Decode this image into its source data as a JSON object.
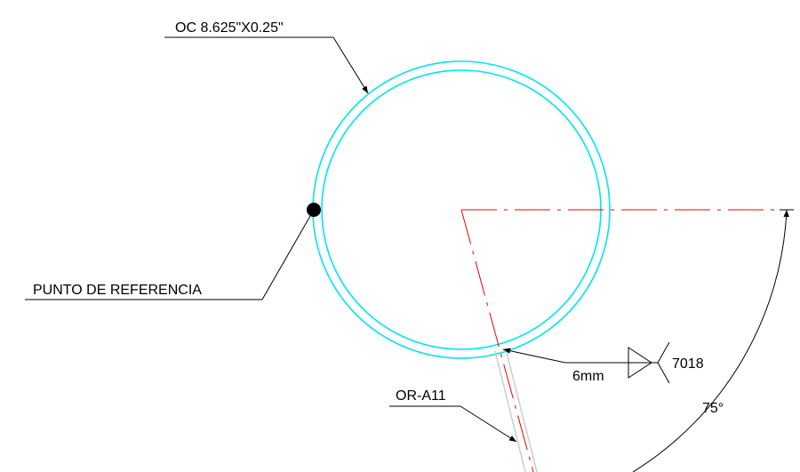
{
  "labels": {
    "pipe": "OC 8.625\"X0.25\"",
    "reference": "PUNTO DE REFERENCIA",
    "weld_size": "6mm",
    "electrode": "7018",
    "branch": "OR-A11",
    "angle": "75°"
  }
}
